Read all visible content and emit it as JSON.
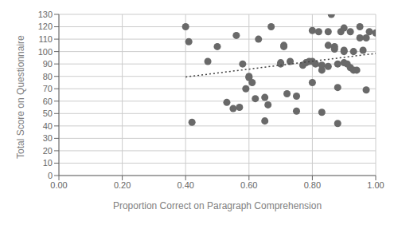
{
  "chart_data": {
    "type": "scatter",
    "xlabel": "Proportion Correct on Paragraph Comprehension",
    "ylabel": "Total Score on Questionnaire",
    "x": [
      0.4,
      0.41,
      0.42,
      0.47,
      0.5,
      0.53,
      0.55,
      0.56,
      0.57,
      0.58,
      0.59,
      0.6,
      0.6,
      0.61,
      0.62,
      0.63,
      0.65,
      0.65,
      0.66,
      0.67,
      0.7,
      0.7,
      0.71,
      0.71,
      0.72,
      0.73,
      0.75,
      0.75,
      0.77,
      0.78,
      0.79,
      0.8,
      0.8,
      0.8,
      0.81,
      0.82,
      0.83,
      0.83,
      0.83,
      0.85,
      0.85,
      0.85,
      0.86,
      0.87,
      0.87,
      0.88,
      0.88,
      0.88,
      0.89,
      0.9,
      0.9,
      0.9,
      0.9,
      0.91,
      0.92,
      0.92,
      0.93,
      0.93,
      0.94,
      0.95,
      0.95,
      0.96,
      0.97,
      0.97,
      0.98,
      1.0
    ],
    "values": [
      120,
      108,
      43,
      92,
      104,
      59,
      54,
      113,
      55,
      90,
      70,
      80,
      79,
      75,
      62,
      110,
      63,
      44,
      57,
      120,
      91,
      90,
      105,
      104,
      66,
      92,
      52,
      64,
      89,
      91,
      92,
      92,
      117,
      75,
      90,
      116,
      51,
      85,
      89,
      116,
      88,
      105,
      130,
      104,
      102,
      90,
      42,
      71,
      116,
      119,
      101,
      100,
      91,
      90,
      87,
      116,
      100,
      85,
      85,
      120,
      111,
      101,
      69,
      111,
      116,
      115
    ],
    "color": "#696969",
    "trend_line": {
      "x": [
        0.4,
        1.0
      ],
      "values": [
        79.5,
        98.5
      ],
      "color": "#444444",
      "line_style": "dotted"
    },
    "xlim": [
      0.0,
      1.0
    ],
    "ylim": [
      0,
      130
    ],
    "xticks": [
      {
        "value": 0.0,
        "label": "0.00"
      },
      {
        "value": 0.2,
        "label": "0.20"
      },
      {
        "value": 0.4,
        "label": "0.40"
      },
      {
        "value": 0.6,
        "label": "0.60"
      },
      {
        "value": 0.8,
        "label": "0.80"
      },
      {
        "value": 1.0,
        "label": "1.00"
      }
    ],
    "yticks": [
      0,
      10,
      20,
      30,
      40,
      50,
      60,
      70,
      80,
      90,
      100,
      110,
      120,
      130
    ],
    "grid": true
  }
}
